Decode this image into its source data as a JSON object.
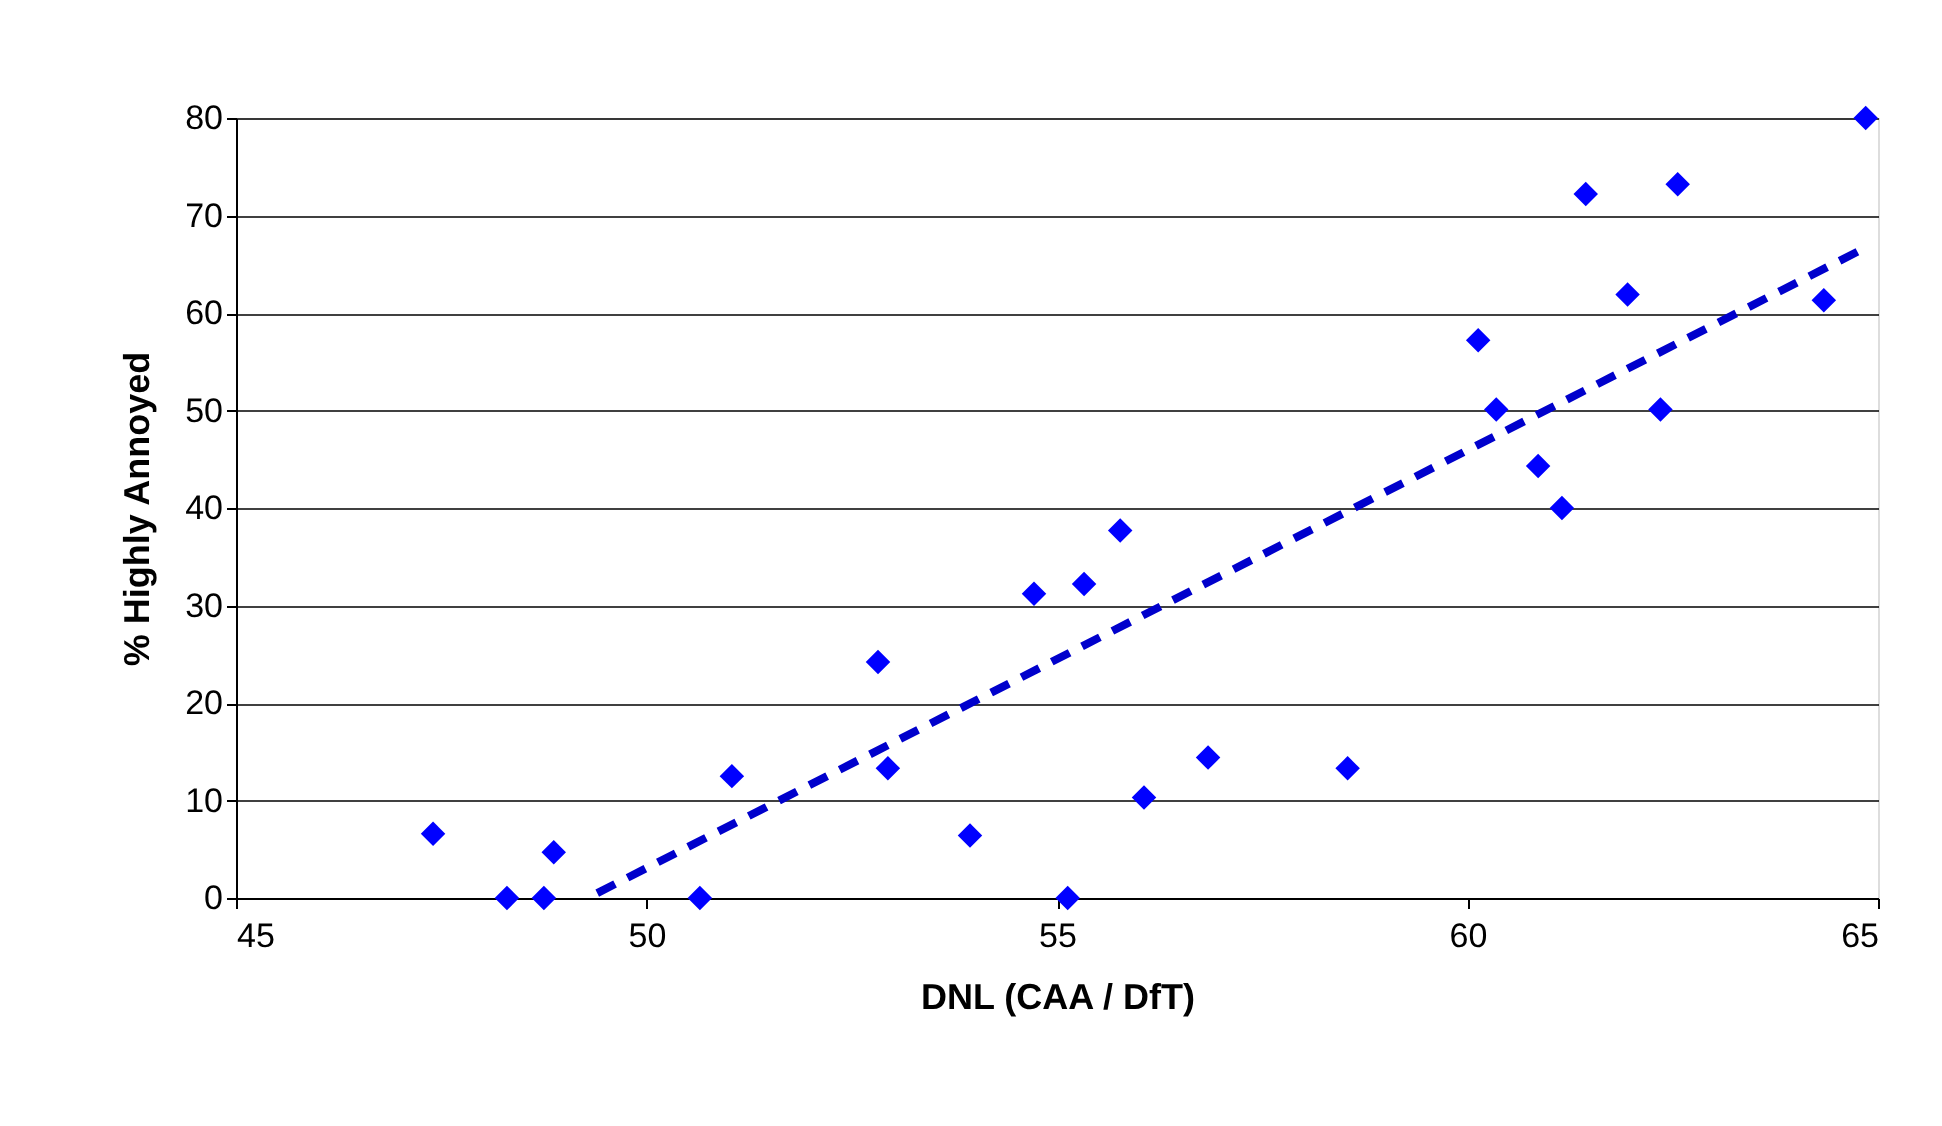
{
  "chart_data": {
    "type": "scatter",
    "xlabel": "DNL (CAA / DfT)",
    "ylabel": "% Highly Annoyed",
    "xlim": [
      45,
      65
    ],
    "ylim": [
      0,
      80
    ],
    "xticks": [
      45,
      50,
      55,
      60,
      65
    ],
    "yticks": [
      0,
      10,
      20,
      30,
      40,
      50,
      60,
      70,
      80
    ],
    "grid": "y",
    "series": [
      {
        "color": "#0000ff",
        "marker": "diamond",
        "x": [
          47.4,
          48.3,
          48.75,
          48.87,
          50.65,
          51.04,
          52.82,
          52.94,
          53.94,
          54.72,
          55.13,
          55.33,
          55.77,
          56.06,
          56.84,
          58.54,
          60.13,
          60.35,
          60.86,
          61.15,
          61.44,
          61.95,
          62.35,
          62.56,
          64.34,
          64.85
        ],
        "values": [
          6.6,
          0,
          0,
          4.7,
          0,
          12.5,
          24.2,
          13.3,
          6.4,
          31.2,
          0,
          32.2,
          37.7,
          10.3,
          14.4,
          13.3,
          57.2,
          50.1,
          44.3,
          40.0,
          72.2,
          61.9,
          50.1,
          73.2,
          61.3,
          80.0
        ]
      },
      {
        "type": "line",
        "color": "#0000cc",
        "line_style": "dashed",
        "marker": "none",
        "x": [
          49.4,
          64.8
        ],
        "values": [
          0.5,
          66.5
        ]
      }
    ]
  }
}
